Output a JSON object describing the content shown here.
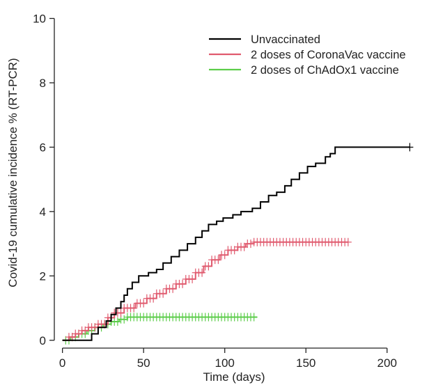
{
  "chart_data": {
    "type": "line",
    "subtype": "step (Kaplan-Meier cumulative incidence) with censor marks",
    "title": "",
    "xlabel": "Time (days)",
    "ylabel": "Covid-19 cumulative incidence % (RT-PCR)",
    "xlim": [
      -5,
      225
    ],
    "ylim": [
      -0.2,
      10.4
    ],
    "xticks": [
      0,
      50,
      100,
      150,
      200
    ],
    "yticks": [
      0,
      2,
      4,
      6,
      8,
      10
    ],
    "grid": false,
    "legend_position": "top-right",
    "series": [
      {
        "name": "Unvaccinated",
        "color": "#000000",
        "points": [
          [
            0,
            0
          ],
          [
            15,
            0
          ],
          [
            18,
            0.2
          ],
          [
            22,
            0.4
          ],
          [
            27,
            0.6
          ],
          [
            30,
            0.8
          ],
          [
            33,
            1.0
          ],
          [
            36,
            1.2
          ],
          [
            38,
            1.4
          ],
          [
            40,
            1.6
          ],
          [
            43,
            1.8
          ],
          [
            47,
            2.0
          ],
          [
            53,
            2.1
          ],
          [
            58,
            2.2
          ],
          [
            62,
            2.4
          ],
          [
            67,
            2.6
          ],
          [
            72,
            2.8
          ],
          [
            77,
            3.0
          ],
          [
            82,
            3.2
          ],
          [
            86,
            3.4
          ],
          [
            90,
            3.6
          ],
          [
            95,
            3.7
          ],
          [
            99,
            3.8
          ],
          [
            105,
            3.9
          ],
          [
            110,
            4.0
          ],
          [
            117,
            4.1
          ],
          [
            122,
            4.3
          ],
          [
            127,
            4.5
          ],
          [
            132,
            4.6
          ],
          [
            137,
            4.8
          ],
          [
            141,
            5.0
          ],
          [
            146,
            5.2
          ],
          [
            151,
            5.4
          ],
          [
            156,
            5.5
          ],
          [
            162,
            5.7
          ],
          [
            165,
            5.8
          ],
          [
            168,
            6.0
          ],
          [
            214,
            6.0
          ]
        ],
        "censor_x": [
          214
        ]
      },
      {
        "name": "2 doses of CoronaVac vaccine",
        "color": "#e05a6e",
        "points": [
          [
            0,
            0
          ],
          [
            4,
            0.1
          ],
          [
            8,
            0.2
          ],
          [
            12,
            0.3
          ],
          [
            16,
            0.4
          ],
          [
            22,
            0.5
          ],
          [
            28,
            0.7
          ],
          [
            32,
            0.85
          ],
          [
            38,
            1.0
          ],
          [
            45,
            1.15
          ],
          [
            52,
            1.3
          ],
          [
            58,
            1.45
          ],
          [
            64,
            1.6
          ],
          [
            70,
            1.75
          ],
          [
            76,
            1.9
          ],
          [
            82,
            2.1
          ],
          [
            87,
            2.3
          ],
          [
            92,
            2.5
          ],
          [
            97,
            2.65
          ],
          [
            102,
            2.8
          ],
          [
            108,
            2.9
          ],
          [
            113,
            3.0
          ],
          [
            118,
            3.05
          ],
          [
            176,
            3.05
          ]
        ],
        "censor_range": [
          4,
          176
        ],
        "censor_step": 2
      },
      {
        "name": "2 doses of ChAdOx1 vaccine",
        "color": "#5ccd4a",
        "points": [
          [
            0,
            0
          ],
          [
            5,
            0.1
          ],
          [
            10,
            0.2
          ],
          [
            15,
            0.3
          ],
          [
            20,
            0.4
          ],
          [
            25,
            0.5
          ],
          [
            30,
            0.58
          ],
          [
            35,
            0.65
          ],
          [
            40,
            0.72
          ],
          [
            120,
            0.72
          ]
        ],
        "censor_range": [
          2,
          118
        ],
        "censor_step": 2
      }
    ]
  }
}
